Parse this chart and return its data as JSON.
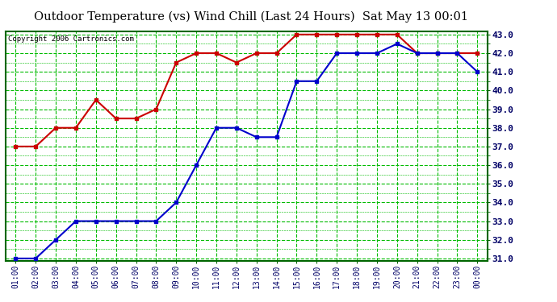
{
  "title": "Outdoor Temperature (vs) Wind Chill (Last 24 Hours)  Sat May 13 00:01",
  "copyright": "Copyright 2006 Cartronics.com",
  "x_labels": [
    "01:00",
    "02:00",
    "03:00",
    "04:00",
    "05:00",
    "06:00",
    "07:00",
    "08:00",
    "09:00",
    "10:00",
    "11:00",
    "12:00",
    "13:00",
    "14:00",
    "15:00",
    "16:00",
    "17:00",
    "18:00",
    "19:00",
    "20:00",
    "21:00",
    "22:00",
    "23:00",
    "00:00"
  ],
  "red_data": [
    37.0,
    37.0,
    38.0,
    38.0,
    39.5,
    38.5,
    38.5,
    39.0,
    41.5,
    42.0,
    42.0,
    41.5,
    42.0,
    42.0,
    43.0,
    43.0,
    43.0,
    43.0,
    43.0,
    43.0,
    42.0,
    42.0,
    42.0,
    42.0
  ],
  "blue_data": [
    31.0,
    31.0,
    32.0,
    33.0,
    33.0,
    33.0,
    33.0,
    33.0,
    34.0,
    36.0,
    38.0,
    38.0,
    37.5,
    37.5,
    40.5,
    40.5,
    42.0,
    42.0,
    42.0,
    42.5,
    42.0,
    42.0,
    42.0,
    41.0
  ],
  "ylim_min": 31.0,
  "ylim_max": 43.0,
  "y_ticks": [
    31.0,
    32.0,
    33.0,
    34.0,
    35.0,
    36.0,
    37.0,
    38.0,
    39.0,
    40.0,
    41.0,
    42.0,
    43.0
  ],
  "red_color": "#cc0000",
  "blue_color": "#0000cc",
  "bg_color": "#ffffff",
  "plot_bg_color": "#ffffff",
  "grid_color": "#00bb00",
  "title_color": "#000000",
  "copyright_color": "#000000",
  "tick_label_color": "#000066",
  "border_color": "#006600"
}
